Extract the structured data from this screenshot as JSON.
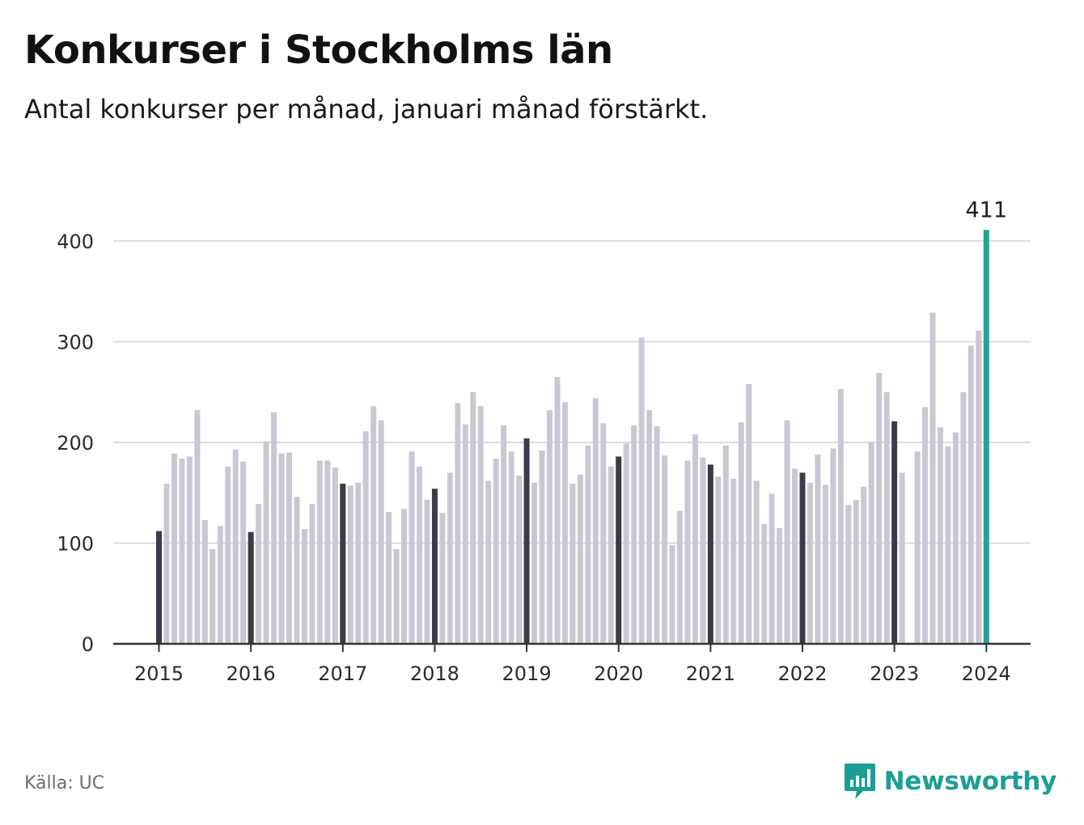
{
  "header": {
    "title": "Konkurser i Stockholms län",
    "subtitle": "Antal konkurser per månad, januari månad förstärkt."
  },
  "footer": {
    "source": "Källa: UC",
    "brand": "Newsworthy"
  },
  "colors": {
    "regular_bar": "#c9c8d2",
    "january_bar": "#3c3b4a",
    "latest_bar": "#1fa595",
    "gridline": "#dcdcdc",
    "axis": "#333333",
    "brand": "#1b9e95"
  },
  "chart_data": {
    "type": "bar",
    "title": "Konkurser i Stockholms län",
    "subtitle": "Antal konkurser per månad, januari månad förstärkt.",
    "start": "2015-01",
    "ylim": [
      0,
      430
    ],
    "yticks": [
      0,
      100,
      200,
      300,
      400
    ],
    "xticks": [
      "2015",
      "2016",
      "2017",
      "2018",
      "2019",
      "2020",
      "2021",
      "2022",
      "2023",
      "2024"
    ],
    "grid": true,
    "highlight": "January bars are dark; latest month highlighted in teal",
    "annotation": {
      "label": "411",
      "index": 108
    },
    "values": [
      112,
      159,
      189,
      184,
      186,
      232,
      123,
      94,
      117,
      176,
      193,
      181,
      111,
      139,
      201,
      230,
      189,
      190,
      146,
      114,
      139,
      182,
      182,
      175,
      159,
      157,
      160,
      211,
      236,
      222,
      131,
      94,
      134,
      191,
      176,
      143,
      154,
      130,
      170,
      239,
      218,
      250,
      236,
      162,
      184,
      217,
      191,
      167,
      204,
      160,
      192,
      232,
      265,
      240,
      159,
      168,
      197,
      244,
      219,
      176,
      186,
      199,
      217,
      304,
      232,
      216,
      187,
      98,
      132,
      182,
      208,
      185,
      178,
      166,
      197,
      164,
      220,
      258,
      162,
      119,
      149,
      115,
      222,
      174,
      170,
      160,
      188,
      158,
      194,
      253,
      138,
      143,
      156,
      200,
      269,
      250,
      221,
      170,
      null,
      191,
      235,
      329,
      215,
      196,
      210,
      250,
      296,
      311,
      411
    ]
  }
}
